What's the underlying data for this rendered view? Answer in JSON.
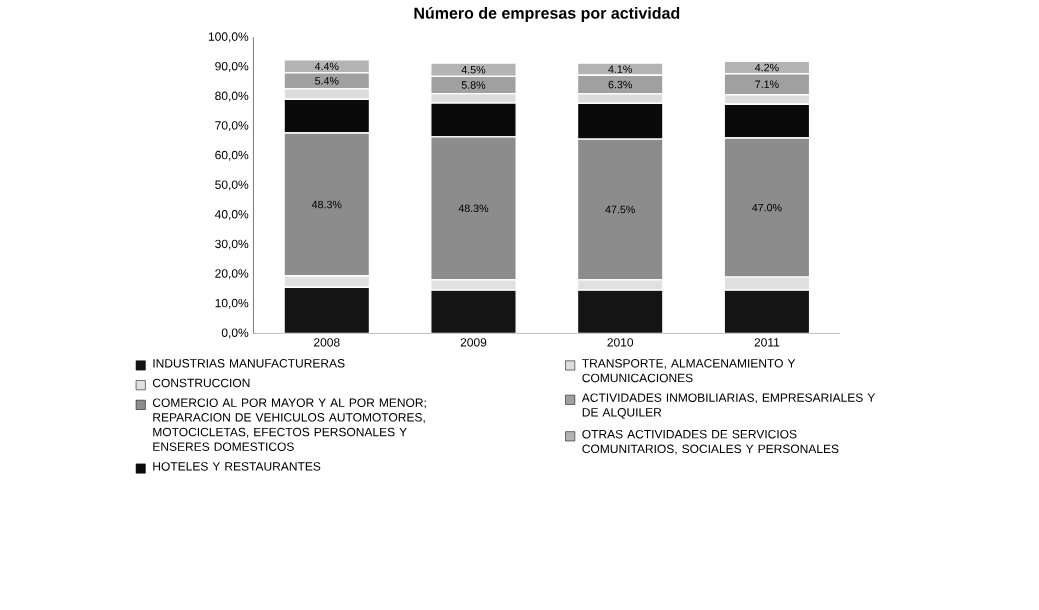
{
  "chart_data": {
    "type": "bar",
    "stacked": true,
    "title": "Número de empresas por actividad",
    "categories": [
      "2008",
      "2009",
      "2010",
      "2011"
    ],
    "series": [
      {
        "name": "INDUSTRIAS MANUFACTURERAS",
        "color": "#141414",
        "values": [
          15.6,
          14.6,
          14.6,
          14.6
        ]
      },
      {
        "name": "CONSTRUCCION",
        "color": "#e0e0e0",
        "values": [
          3.8,
          3.5,
          3.5,
          4.4
        ]
      },
      {
        "name": "COMERCIO AL POR MAYOR Y AL POR MENOR; REPARACION DE VEHICULOS AUTOMOTORES, MOTOCICLETAS, EFECTOS PERSONALES Y ENSERES DOMESTICOS",
        "color": "#8c8c8c",
        "values": [
          48.3,
          48.3,
          47.5,
          47.0
        ],
        "value_labels": [
          "48.3%",
          "48.3%",
          "47.5%",
          "47.0%"
        ]
      },
      {
        "name": "HOTELES Y RESTAURANTES",
        "color": "#0a0a0a",
        "values": [
          11.4,
          11.4,
          12.1,
          11.4
        ]
      },
      {
        "name": "TRANSPORTE, ALMACENAMIENTO Y COMUNICACIONES",
        "color": "#dcdcdc",
        "values": [
          3.5,
          3.2,
          3.2,
          3.2
        ]
      },
      {
        "name": "ACTIVIDADES INMOBILIARIAS, EMPRESARIALES Y DE ALQUILER",
        "color": "#a0a0a0",
        "values": [
          5.4,
          5.8,
          6.3,
          7.1
        ],
        "value_labels": [
          "5.4%",
          "5.8%",
          "6.3%",
          "7.1%"
        ]
      },
      {
        "name": "OTRAS ACTIVIDADES DE SERVICIOS COMUNITARIOS, SOCIALES Y PERSONALES",
        "color": "#b4b4b4",
        "values": [
          4.4,
          4.5,
          4.1,
          4.2
        ],
        "value_labels": [
          "4.4%",
          "4.5%",
          "4.1%",
          "4.2%"
        ]
      }
    ],
    "ylim": [
      0,
      100
    ],
    "yticks": [
      {
        "value": 0,
        "label": "0,0%"
      },
      {
        "value": 10,
        "label": "10,0%"
      },
      {
        "value": 20,
        "label": "20,0%"
      },
      {
        "value": 30,
        "label": "30,0%"
      },
      {
        "value": 40,
        "label": "40,0%"
      },
      {
        "value": 50,
        "label": "50,0%"
      },
      {
        "value": 60,
        "label": "60,0%"
      },
      {
        "value": 70,
        "label": "70,0%"
      },
      {
        "value": 80,
        "label": "80,0%"
      },
      {
        "value": 90,
        "label": "90,0%"
      },
      {
        "value": 100,
        "label": "100,0%"
      }
    ],
    "legend": "bottom"
  }
}
